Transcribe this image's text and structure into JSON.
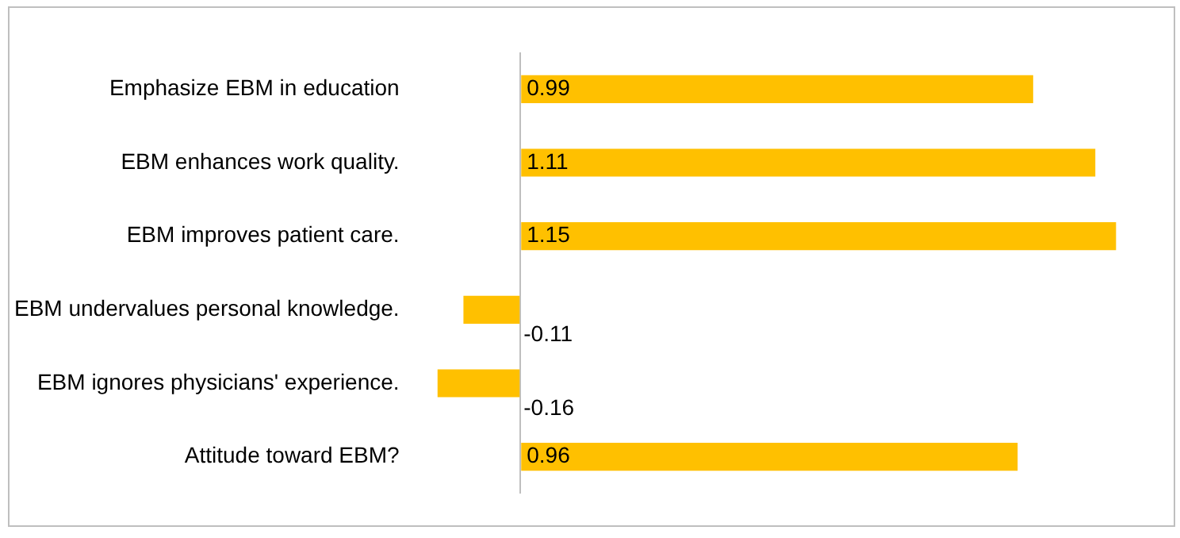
{
  "chart_data": {
    "type": "bar",
    "orientation": "horizontal",
    "categories": [
      "Emphasize EBM in education",
      "EBM enhances work quality.",
      "EBM improves patient care.",
      "EBM undervalues personal knowledge.",
      "EBM ignores physicians' experience.",
      "Attitude toward EBM?"
    ],
    "values": [
      0.99,
      1.11,
      1.15,
      -0.11,
      -0.16,
      0.96
    ],
    "color": "#ffc000",
    "data_labels": true,
    "tick_labels": "y",
    "grid": false,
    "legend": false
  }
}
